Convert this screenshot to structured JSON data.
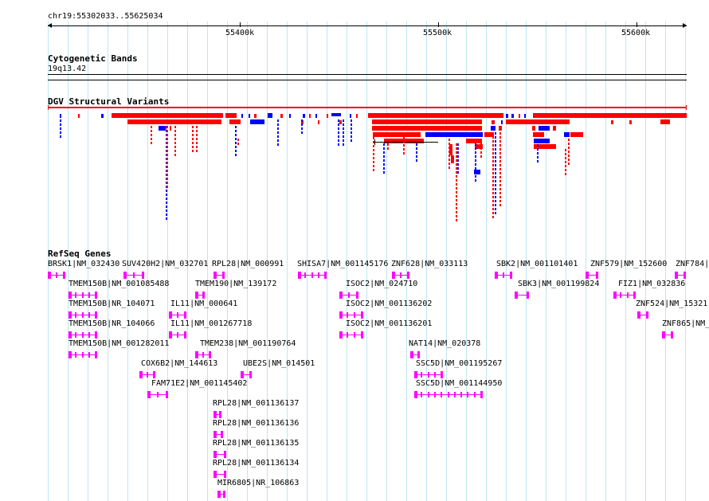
{
  "ruler": {
    "location": "chr19:55302033..55625034",
    "ticks": [
      "55400k",
      "55500k",
      "55600k"
    ]
  },
  "tracks": {
    "cytoband": {
      "title": "Cytogenetic Bands",
      "band": "19q13.42"
    },
    "dgv": {
      "title": "DGV Structural Variants"
    },
    "refseq": {
      "title": "RefSeq Genes"
    }
  },
  "colors": {
    "gain": "#ff0000",
    "loss": "#0000ff",
    "gene": "#ff00ff",
    "grid": "#bfe6f2"
  },
  "genes": [
    {
      "label": "BRSK1|NM_032430"
    },
    {
      "label": "SUV420H2|NM_032701"
    },
    {
      "label": "RPL28|NM_000991"
    },
    {
      "label": "SHISA7|NM_001145176"
    },
    {
      "label": "ZNF628|NM_033113"
    },
    {
      "label": "SBK2|NM_001101401"
    },
    {
      "label": "ZNF579|NM_152600"
    },
    {
      "label": "ZNF784|"
    },
    {
      "label": "TMEM150B|NM_001085488"
    },
    {
      "label": "TMEM190|NM_139172"
    },
    {
      "label": "ISOC2|NM_024710"
    },
    {
      "label": "SBK3|NM_001199824"
    },
    {
      "label": "FIZ1|NM_032836"
    },
    {
      "label": "TMEM150B|NR_104071"
    },
    {
      "label": "IL11|NM_000641"
    },
    {
      "label": "ISOC2|NM_001136202"
    },
    {
      "label": "ZNF524|NM_15321"
    },
    {
      "label": "TMEM150B|NR_104066"
    },
    {
      "label": "IL11|NM_001267718"
    },
    {
      "label": "ISOC2|NM_001136201"
    },
    {
      "label": "ZNF865|NM_"
    },
    {
      "label": "TMEM150B|NM_001282011"
    },
    {
      "label": "TMEM238|NM_001190764"
    },
    {
      "label": "NAT14|NM_020378"
    },
    {
      "label": "COX6B2|NM_144613"
    },
    {
      "label": "UBE2S|NM_014501"
    },
    {
      "label": "SSC5D|NM_001195267"
    },
    {
      "label": "FAM71E2|NM_001145402"
    },
    {
      "label": "SSC5D|NM_001144950"
    },
    {
      "label": "RPL28|NM_001136137"
    },
    {
      "label": "RPL28|NM_001136136"
    },
    {
      "label": "RPL28|NM_001136135"
    },
    {
      "label": "RPL28|NM_001136134"
    },
    {
      "label": "MIR6805|NR_106863"
    }
  ]
}
